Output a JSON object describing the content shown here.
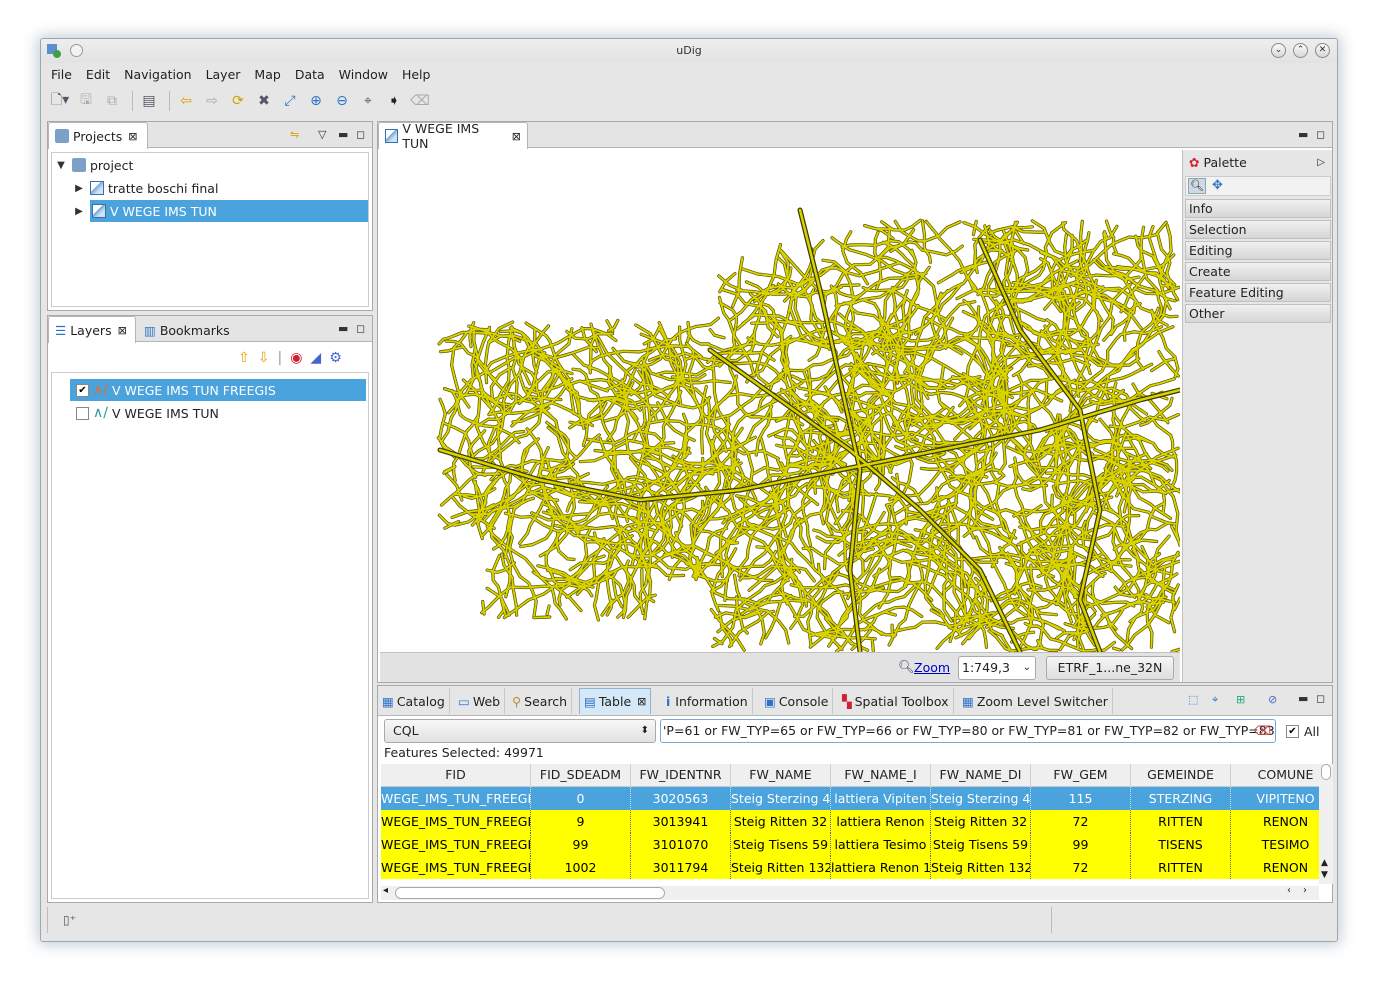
{
  "window": {
    "title": "uDig"
  },
  "menu": [
    "File",
    "Edit",
    "Navigation",
    "Layer",
    "Map",
    "Data",
    "Window",
    "Help"
  ],
  "projects_view": {
    "tab_label": "Projects",
    "items": [
      {
        "label": "project",
        "expanded": true
      },
      {
        "label": "tratte boschi final"
      },
      {
        "label": "V WEGE IMS TUN",
        "selected": true
      }
    ]
  },
  "layers_view": {
    "tab_label": "Layers",
    "tab2_label": "Bookmarks",
    "layers": [
      {
        "label": "V WEGE IMS TUN FREEGIS",
        "checked": true,
        "selected": true
      },
      {
        "label": "V WEGE IMS TUN",
        "checked": false
      }
    ]
  },
  "map_editor": {
    "tab_label": "V WEGE IMS TUN",
    "zoom_label": "Zoom",
    "scale_value": "1:749,3",
    "crs_label": "ETRF_1...ne_32N",
    "feature_color": "#d9d400"
  },
  "palette": {
    "title": "Palette",
    "groups": [
      "Info",
      "Selection",
      "Editing",
      "Create",
      "Feature Editing",
      "Other"
    ]
  },
  "bottom_tabs": [
    "Catalog",
    "Web",
    "Search",
    "Table",
    "Information",
    "Console",
    "Spatial Toolbox",
    "Zoom Level Switcher"
  ],
  "table_view": {
    "filter_type": "CQL",
    "filter_text": "'P=61 or FW_TYP=65 or FW_TYP=66 or FW_TYP=80 or FW_TYP=81 or FW_TYP=82 or FW_TYP=83",
    "all_label": "All",
    "features_selected": "Features Selected: 49971",
    "columns": [
      "FID",
      "FID_SDEADM",
      "FW_IDENTNR",
      "FW_NAME",
      "FW_NAME_I",
      "FW_NAME_DI",
      "FW_GEM",
      "GEMEINDE",
      "COMUNE"
    ],
    "rows": [
      [
        "WEGE_IMS_TUN_FREEGIS",
        "0",
        "3020563",
        "Steig Sterzing 4",
        "lattiera Vipiten",
        "Steig Sterzing 4",
        "115",
        "STERZING",
        "VIPITENO"
      ],
      [
        "WEGE_IMS_TUN_FREEGIS",
        "9",
        "3013941",
        "Steig Ritten 32",
        "lattiera Renon",
        "Steig Ritten 32",
        "72",
        "RITTEN",
        "RENON"
      ],
      [
        "WEGE_IMS_TUN_FREEGIS",
        "99",
        "3101070",
        "Steig Tisens 59",
        "lattiera Tesimo",
        "Steig Tisens 59",
        "99",
        "TISENS",
        "TESIMO"
      ],
      [
        "WEGE_IMS_TUN_FREEGIS",
        "1002",
        "3011794",
        "Steig Ritten 132",
        "lattiera Renon 1",
        "Steig Ritten 132",
        "72",
        "RITTEN",
        "RENON"
      ]
    ]
  }
}
